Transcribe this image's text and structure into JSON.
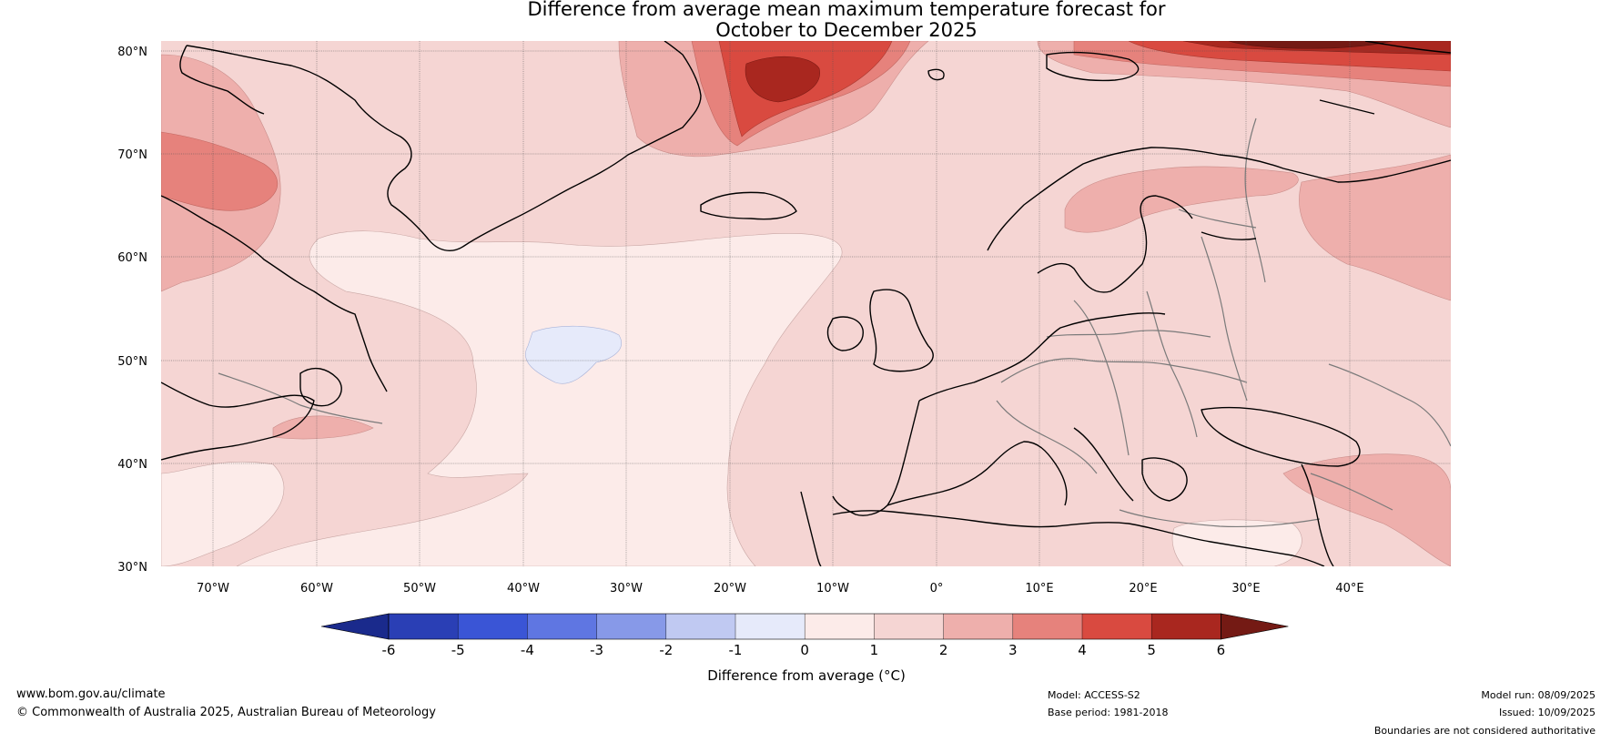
{
  "title": {
    "line1": "Difference from average mean maximum temperature forecast for",
    "line2": "October to December 2025"
  },
  "axes": {
    "lat_ticks": [
      "80°N",
      "70°N",
      "60°N",
      "50°N",
      "40°N",
      "30°N"
    ],
    "lon_ticks": [
      "70°W",
      "60°W",
      "50°W",
      "40°W",
      "30°W",
      "20°W",
      "10°W",
      "0°",
      "10°E",
      "20°E",
      "30°E",
      "40°E"
    ]
  },
  "colorbar": {
    "label": "Difference from average (°C)",
    "ticks": [
      "-6",
      "-5",
      "-4",
      "-3",
      "-2",
      "-1",
      "0",
      "1",
      "2",
      "3",
      "4",
      "5",
      "6"
    ],
    "colors": [
      "#1a2a8c",
      "#2a3fb5",
      "#3a55d6",
      "#5f76e2",
      "#8799e8",
      "#c0c9f2",
      "#e6eafa",
      "#fcebe9",
      "#f5d5d3",
      "#eeafac",
      "#e6827c",
      "#d94a40",
      "#a9271f",
      "#741a14"
    ]
  },
  "footer": {
    "website": "www.bom.gov.au/climate",
    "copyright": "© Commonwealth of Australia 2025, Australian Bureau of Meteorology",
    "model": "Model: ACCESS-S2",
    "base_period": "Base period: 1981-2018",
    "model_run": "Model run: 08/09/2025",
    "issued": "Issued: 10/09/2025",
    "disclaimer": "Boundaries are not considered authoritative"
  }
}
